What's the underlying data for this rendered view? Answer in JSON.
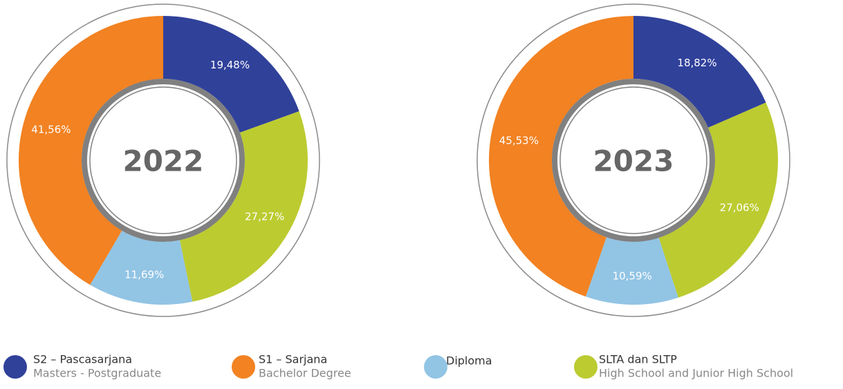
{
  "chart_data": [
    {
      "type": "pie",
      "title": "2022",
      "values": [
        19.48,
        41.56,
        11.69,
        27.27
      ],
      "value_labels": [
        "19,48%",
        "41,56%",
        "11,69%",
        "27,27%"
      ]
    },
    {
      "type": "pie",
      "title": "2023",
      "values": [
        18.82,
        45.53,
        10.59,
        27.06
      ],
      "value_labels": [
        "18,82%",
        "45,53%",
        "10,59%",
        "27,06%"
      ]
    }
  ],
  "legend": {
    "items": [
      {
        "name": "S2 – Pascasarjana",
        "subtitle": "Masters - Postgraduate",
        "color": "#30419a"
      },
      {
        "name": "S1 – Sarjana",
        "subtitle": "Bachelor Degree",
        "color": "#f28222"
      },
      {
        "name": "Diploma",
        "color": "#92c4e4"
      },
      {
        "name": "SLTA dan SLTP",
        "subtitle": "High School and Junior High School",
        "color": "#bccb30"
      }
    ]
  }
}
